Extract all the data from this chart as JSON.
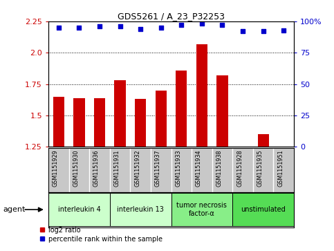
{
  "title": "GDS5261 / A_23_P32253",
  "samples": [
    "GSM1151929",
    "GSM1151930",
    "GSM1151936",
    "GSM1151931",
    "GSM1151932",
    "GSM1151937",
    "GSM1151933",
    "GSM1151934",
    "GSM1151938",
    "GSM1151928",
    "GSM1151935",
    "GSM1151951"
  ],
  "log2_ratio": [
    1.65,
    1.64,
    1.64,
    1.78,
    1.63,
    1.7,
    1.86,
    2.07,
    1.82,
    1.25,
    1.35,
    1.24
  ],
  "percentile_y": [
    2.2,
    2.2,
    2.21,
    2.21,
    2.19,
    2.2,
    2.22,
    2.23,
    2.22,
    2.17,
    2.17,
    2.18
  ],
  "bar_color": "#cc0000",
  "dot_color": "#0000cc",
  "ylim": [
    1.25,
    2.25
  ],
  "yticks_left": [
    1.25,
    1.5,
    1.75,
    2.0,
    2.25
  ],
  "yticks_right_pos": [
    1.25,
    1.5,
    1.75,
    2.0,
    2.25
  ],
  "yticks_right_labels": [
    "0",
    "25",
    "50",
    "75",
    "100%"
  ],
  "dotted_lines": [
    1.5,
    1.75,
    2.0
  ],
  "groups": [
    {
      "label": "interleukin 4",
      "indices": [
        0,
        1,
        2
      ],
      "color": "#ccffcc"
    },
    {
      "label": "interleukin 13",
      "indices": [
        3,
        4,
        5
      ],
      "color": "#ccffcc"
    },
    {
      "label": "tumor necrosis\nfactor-α",
      "indices": [
        6,
        7,
        8
      ],
      "color": "#88ee88"
    },
    {
      "label": "unstimulated",
      "indices": [
        9,
        10,
        11
      ],
      "color": "#55dd55"
    }
  ],
  "bar_color_hex": "#cc0000",
  "dot_color_hex": "#0000cc",
  "tick_bg_color": "#c8c8c8",
  "legend_label_bar": "log2 ratio",
  "legend_label_dot": "percentile rank within the sample",
  "agent_label": "agent"
}
